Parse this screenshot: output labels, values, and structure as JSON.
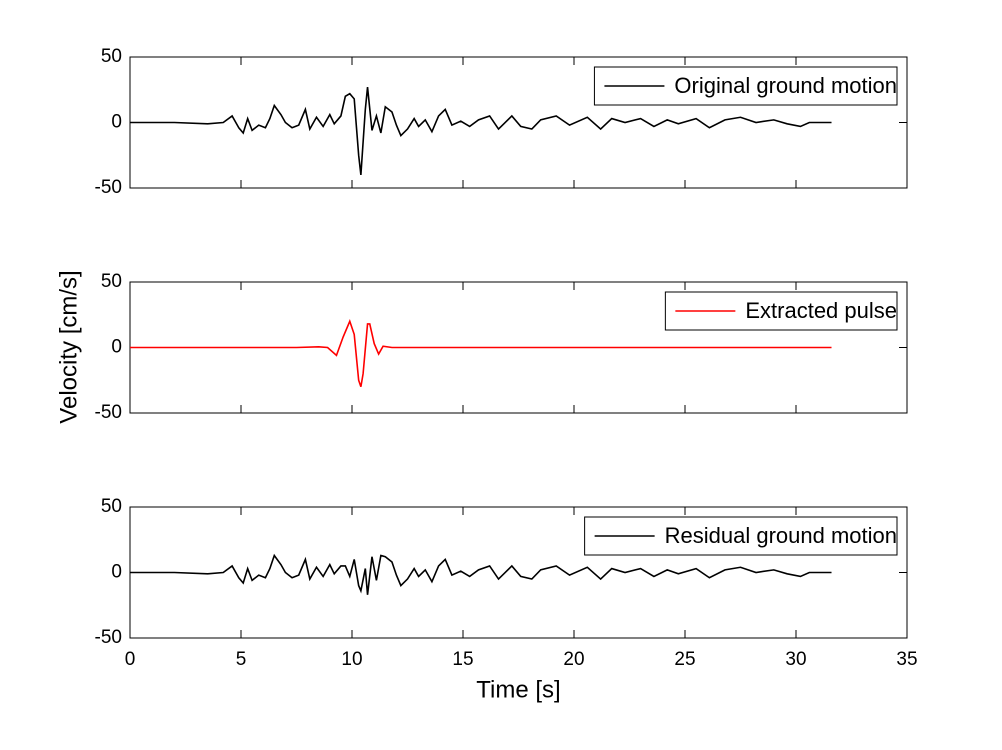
{
  "chart_data": [
    {
      "type": "line",
      "legend": "upper right",
      "xlim": [
        0,
        35
      ],
      "ylim": [
        -50,
        50
      ],
      "yticks": [
        -50,
        0,
        50
      ],
      "x": [
        0,
        2,
        3.5,
        4.2,
        4.6,
        4.9,
        5.1,
        5.3,
        5.5,
        5.8,
        6.1,
        6.3,
        6.5,
        6.8,
        7.0,
        7.3,
        7.6,
        7.9,
        8.1,
        8.4,
        8.7,
        9.0,
        9.2,
        9.5,
        9.7,
        9.9,
        10.1,
        10.3,
        10.4,
        10.6,
        10.7,
        10.9,
        11.1,
        11.3,
        11.5,
        11.8,
        12.0,
        12.2,
        12.5,
        12.8,
        13.0,
        13.3,
        13.6,
        13.9,
        14.2,
        14.5,
        14.9,
        15.3,
        15.7,
        16.2,
        16.6,
        17.2,
        17.6,
        18.1,
        18.5,
        19.2,
        19.8,
        20.6,
        21.2,
        21.7,
        22.3,
        23,
        23.6,
        24.2,
        24.7,
        25.5,
        26.1,
        26.8,
        27.5,
        28.2,
        29,
        29.6,
        30.2,
        30.6,
        31.6
      ],
      "series": [
        {
          "name": "Original ground motion",
          "color": "#000000",
          "values": [
            0,
            0,
            -1,
            0,
            5,
            -4,
            -8,
            3,
            -6,
            -2,
            -4,
            3,
            13,
            6,
            0,
            -4,
            -2,
            10,
            -5,
            4,
            -3,
            6,
            -1,
            5,
            20,
            22,
            18,
            -25,
            -40,
            10,
            27,
            -6,
            5,
            -8,
            12,
            8,
            -2,
            -10,
            -5,
            3,
            -3,
            2,
            -7,
            5,
            10,
            -2,
            1,
            -3,
            2,
            5,
            -5,
            5,
            -3,
            -5,
            2,
            5,
            -2,
            4,
            -5,
            3,
            0,
            3,
            -3,
            2,
            -1,
            3,
            -4,
            2,
            4,
            0,
            2,
            -1,
            -3,
            0,
            0
          ]
        }
      ]
    },
    {
      "type": "line",
      "legend": "upper right",
      "xlim": [
        0,
        35
      ],
      "ylim": [
        -50,
        50
      ],
      "yticks": [
        -50,
        0,
        50
      ],
      "ylabel": "Velocity [cm/s]",
      "x": [
        0,
        7.5,
        8.5,
        8.9,
        9.3,
        9.6,
        9.9,
        10.1,
        10.3,
        10.4,
        10.5,
        10.7,
        10.8,
        11.0,
        11.2,
        11.4,
        11.8,
        31.6
      ],
      "series": [
        {
          "name": "Extracted pulse",
          "color": "#ff0000",
          "values": [
            0,
            0,
            0.5,
            0,
            -6,
            8,
            20,
            10,
            -25,
            -30,
            -20,
            18,
            18,
            3,
            -5,
            1,
            0,
            0
          ]
        }
      ]
    },
    {
      "type": "line",
      "legend": "upper right",
      "xlim": [
        0,
        35
      ],
      "ylim": [
        -50,
        50
      ],
      "yticks": [
        -50,
        0,
        50
      ],
      "xticks": [
        0,
        5,
        10,
        15,
        20,
        25,
        30,
        35
      ],
      "xlabel": "Time [s]",
      "x": [
        0,
        2,
        3.5,
        4.2,
        4.6,
        4.9,
        5.1,
        5.3,
        5.5,
        5.8,
        6.1,
        6.3,
        6.5,
        6.8,
        7.0,
        7.3,
        7.6,
        7.9,
        8.1,
        8.4,
        8.7,
        9.0,
        9.2,
        9.5,
        9.7,
        9.9,
        10.1,
        10.3,
        10.4,
        10.6,
        10.7,
        10.9,
        11.1,
        11.3,
        11.5,
        11.8,
        12.0,
        12.2,
        12.5,
        12.8,
        13.0,
        13.3,
        13.6,
        13.9,
        14.2,
        14.5,
        14.9,
        15.3,
        15.7,
        16.2,
        16.6,
        17.2,
        17.6,
        18.1,
        18.5,
        19.2,
        19.8,
        20.6,
        21.2,
        21.7,
        22.3,
        23,
        23.6,
        24.2,
        24.7,
        25.5,
        26.1,
        26.8,
        27.5,
        28.2,
        29,
        29.6,
        30.2,
        30.6,
        31.6
      ],
      "series": [
        {
          "name": "Residual ground motion",
          "color": "#000000",
          "values": [
            0,
            0,
            -1,
            0,
            5,
            -4,
            -8,
            3,
            -6,
            -2,
            -4,
            3,
            13,
            6,
            0,
            -4,
            -2,
            10,
            -5,
            4,
            -3,
            6,
            -1,
            5,
            5,
            -3,
            10,
            -10,
            -14,
            3,
            -17,
            12,
            -6,
            13,
            12,
            8,
            -2,
            -10,
            -5,
            3,
            -3,
            2,
            -7,
            5,
            10,
            -2,
            1,
            -3,
            2,
            5,
            -5,
            5,
            -3,
            -5,
            2,
            5,
            -2,
            4,
            -5,
            3,
            0,
            3,
            -3,
            2,
            -1,
            3,
            -4,
            2,
            4,
            0,
            2,
            -1,
            -3,
            0,
            0
          ]
        }
      ]
    }
  ]
}
